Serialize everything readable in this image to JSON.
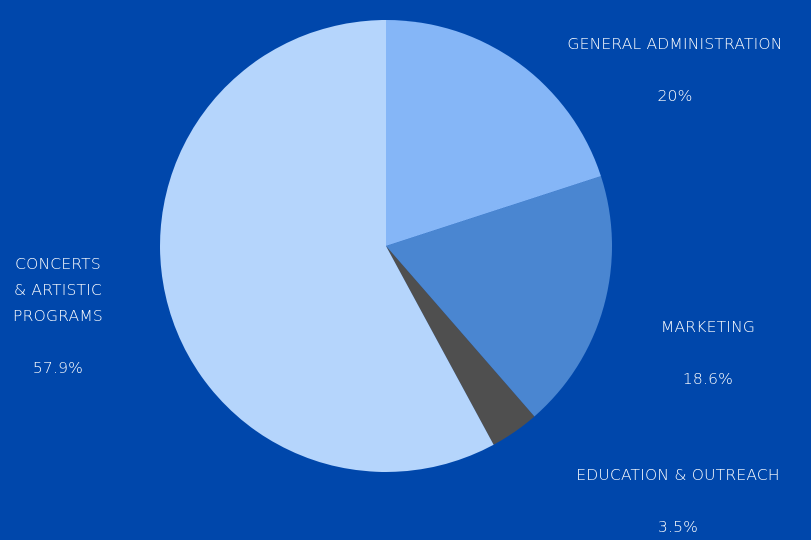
{
  "chart_data": {
    "type": "pie",
    "title": "",
    "slices": [
      {
        "label": "GENERAL ADMINISTRATION",
        "value": 20,
        "value_label": "20%",
        "color": "#85B6F7"
      },
      {
        "label": "MARKETING",
        "value": 18.6,
        "value_label": "18.6%",
        "color": "#4A86D1"
      },
      {
        "label": "EDUCATION & OUTREACH",
        "value": 3.5,
        "value_label": "3.5%",
        "color": "#4F4F4F"
      },
      {
        "label": "CONCERTS\n& ARTISTIC\nPROGRAMS",
        "value": 57.9,
        "value_label": "57.9%",
        "color": "#B5D5FC"
      }
    ],
    "start_angle": "12 o'clock",
    "direction": "clockwise",
    "legend": "none",
    "label_color": "#ffffff",
    "background_color": "#0047AB"
  }
}
